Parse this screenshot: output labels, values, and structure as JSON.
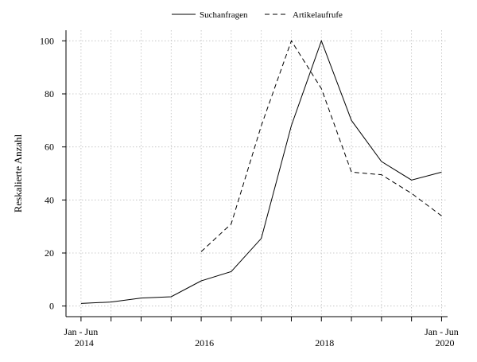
{
  "chart_data": {
    "type": "line",
    "ylabel": "Reskalierte Anzahl",
    "xlabel": "",
    "ylim": [
      -4,
      104
    ],
    "yticks": [
      0,
      20,
      40,
      60,
      80,
      100
    ],
    "x_range": [
      2013.75,
      2020.1
    ],
    "x_labels": [
      {
        "x": 2014.0,
        "line1": "Jan - Jun",
        "line2": "2014"
      },
      {
        "x": 2016.0,
        "line1": "",
        "line2": "2016"
      },
      {
        "x": 2018.0,
        "line1": "",
        "line2": "2018"
      },
      {
        "x": 2020.0,
        "line1": "Jan - Jun",
        "line2": "2020"
      }
    ],
    "x_ticks": [
      2014.0,
      2014.5,
      2015.0,
      2015.5,
      2016.0,
      2016.5,
      2017.0,
      2017.5,
      2018.0,
      2018.5,
      2019.0,
      2019.5,
      2020.0
    ],
    "grid": true,
    "legend_position": "top-center",
    "series": [
      {
        "name": "Suchanfragen",
        "style": "solid",
        "points": [
          [
            2014.0,
            1
          ],
          [
            2014.5,
            1.5
          ],
          [
            2015.0,
            3
          ],
          [
            2015.5,
            3.5
          ],
          [
            2016.0,
            9.5
          ],
          [
            2016.5,
            13
          ],
          [
            2017.0,
            25.5
          ],
          [
            2017.5,
            68
          ],
          [
            2018.0,
            100
          ],
          [
            2018.5,
            70
          ],
          [
            2019.0,
            54.5
          ],
          [
            2019.5,
            47.5
          ],
          [
            2020.0,
            50.5
          ]
        ]
      },
      {
        "name": "Artikelaufrufe",
        "style": "dashed",
        "points": [
          [
            2016.0,
            20.5
          ],
          [
            2016.5,
            31
          ],
          [
            2017.0,
            68
          ],
          [
            2017.5,
            100
          ],
          [
            2018.0,
            82
          ],
          [
            2018.5,
            50.5
          ],
          [
            2019.0,
            49.5
          ],
          [
            2019.5,
            42.5
          ],
          [
            2020.0,
            34
          ]
        ]
      }
    ]
  }
}
